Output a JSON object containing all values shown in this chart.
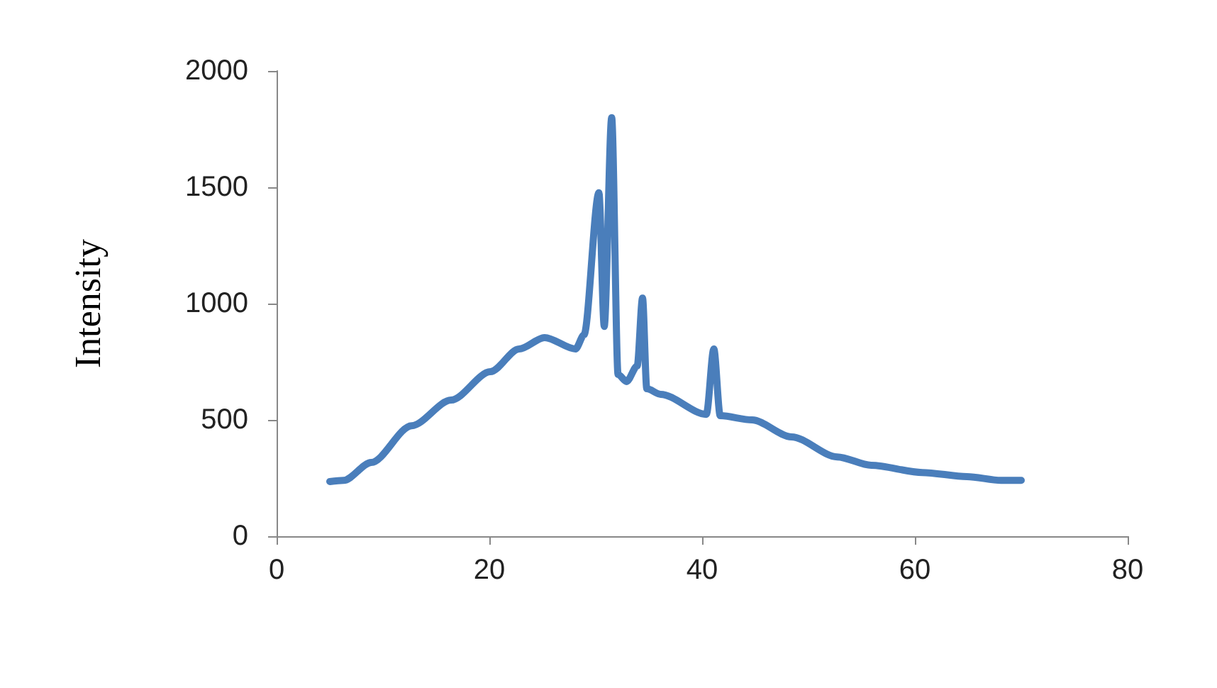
{
  "chart_data": {
    "type": "line",
    "ylabel": "Intensity",
    "xlim": [
      0,
      80
    ],
    "xticks": [
      0,
      20,
      40,
      60,
      80
    ],
    "ylim": [
      0,
      2000
    ],
    "yticks": [
      0,
      500,
      1000,
      1500,
      2000
    ],
    "grid": false,
    "marker": "none",
    "line_style": "solid",
    "series": [
      {
        "color": "#4a7ebb",
        "x": [
          5,
          6.3,
          8.9,
          12.7,
          16.4,
          20.1,
          22.8,
          25.2,
          28.1,
          28.9,
          30.3,
          30.8,
          31.5,
          32.1,
          32.9,
          33.9,
          34.4,
          34.8,
          36.1,
          40.4,
          41.1,
          41.7,
          44.7,
          48.4,
          52.7,
          55.9,
          60.7,
          64.9,
          68.1,
          70
        ],
        "values": [
          235,
          240,
          317,
          475,
          585,
          707,
          805,
          854,
          805,
          866,
          1476,
          902,
          1799,
          695,
          665,
          732,
          1024,
          634,
          610,
          524,
          805,
          518,
          500,
          427,
          341,
          305,
          274,
          256,
          240,
          240
        ]
      }
    ]
  }
}
